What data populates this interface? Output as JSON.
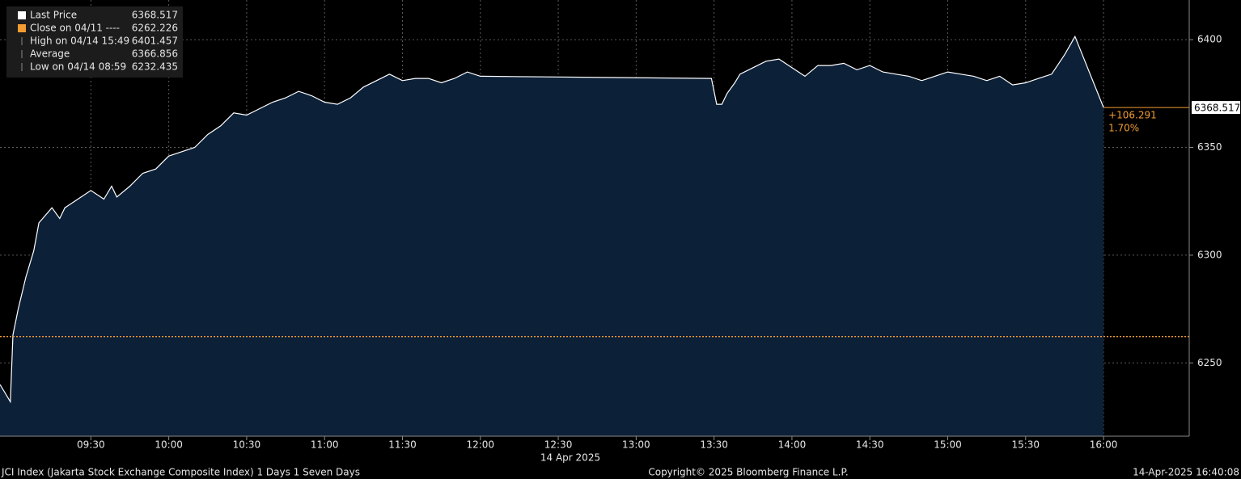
{
  "chart_data": {
    "type": "area",
    "series": [
      {
        "name": "Last Price",
        "color": "#ffffff",
        "fill": "#0c2038",
        "x": [
          "08:55",
          "08:59",
          "09:00",
          "09:02",
          "09:05",
          "09:08",
          "09:10",
          "09:15",
          "09:18",
          "09:20",
          "09:25",
          "09:30",
          "09:35",
          "09:38",
          "09:40",
          "09:45",
          "09:50",
          "09:55",
          "10:00",
          "10:05",
          "10:10",
          "10:15",
          "10:20",
          "10:25",
          "10:30",
          "10:35",
          "10:40",
          "10:45",
          "10:50",
          "10:55",
          "11:00",
          "11:05",
          "11:10",
          "11:15",
          "11:20",
          "11:25",
          "11:30",
          "11:35",
          "11:40",
          "11:45",
          "11:50",
          "11:55",
          "12:00",
          "13:29",
          "13:31",
          "13:33",
          "13:35",
          "13:38",
          "13:40",
          "13:45",
          "13:50",
          "13:55",
          "14:00",
          "14:05",
          "14:10",
          "14:15",
          "14:20",
          "14:25",
          "14:30",
          "14:35",
          "14:40",
          "14:45",
          "14:50",
          "14:55",
          "15:00",
          "15:05",
          "15:10",
          "15:15",
          "15:20",
          "15:25",
          "15:30",
          "15:35",
          "15:40",
          "15:45",
          "15:49",
          "16:00"
        ],
        "values": [
          6240,
          6232,
          6263,
          6275,
          6290,
          6302,
          6315,
          6322,
          6317,
          6322,
          6326,
          6330,
          6326,
          6332,
          6327,
          6332,
          6338,
          6340,
          6346,
          6348,
          6350,
          6356,
          6360,
          6366,
          6365,
          6368,
          6371,
          6373,
          6376,
          6374,
          6371,
          6370,
          6373,
          6378,
          6381,
          6384,
          6381,
          6382,
          6382,
          6380,
          6382,
          6385,
          6383,
          6382,
          6370,
          6370,
          6375,
          6380,
          6384,
          6387,
          6390,
          6391,
          6387,
          6383,
          6388,
          6388,
          6389,
          6386,
          6388,
          6385,
          6384,
          6383,
          6381,
          6383,
          6385,
          6384,
          6383,
          6381,
          6383,
          6379,
          6380,
          6382,
          6384,
          6393,
          6401.457,
          6368.517
        ]
      }
    ],
    "legend": [
      {
        "label": "Last Price",
        "value": 6368.517,
        "color": "#ffffff"
      },
      {
        "label": "Close on 04/11 ----",
        "value": 6262.226,
        "color": "#f39c33"
      },
      {
        "label": "High on 04/14 15:49",
        "value": 6401.457
      },
      {
        "label": "Average",
        "value": 6366.856
      },
      {
        "label": "Low on 04/14 08:59",
        "value": 6232.435
      }
    ],
    "annotations": [
      {
        "value": 106.291,
        "label": "+106.291"
      },
      {
        "value": 1.7,
        "label": "1.70%"
      }
    ],
    "xlim": [
      "08:55",
      "16:33"
    ],
    "xticks": [
      "09:30",
      "10:00",
      "10:30",
      "11:00",
      "11:30",
      "12:00",
      "12:30",
      "13:00",
      "13:30",
      "14:00",
      "14:30",
      "15:00",
      "15:30",
      "16:00"
    ],
    "x_label": "14 Apr 2025",
    "ylim": [
      6216,
      6418.4
    ],
    "yticks": [
      6250,
      6300,
      6350,
      6400
    ],
    "grid": true
  },
  "footer": [
    "JCI Index (Jakarta Stock Exchange Composite Index) 1 Days 1 Seven Days",
    "Copyright© 2025 Bloomberg Finance L.P.",
    "14-Apr-2025 16:40:08"
  ]
}
